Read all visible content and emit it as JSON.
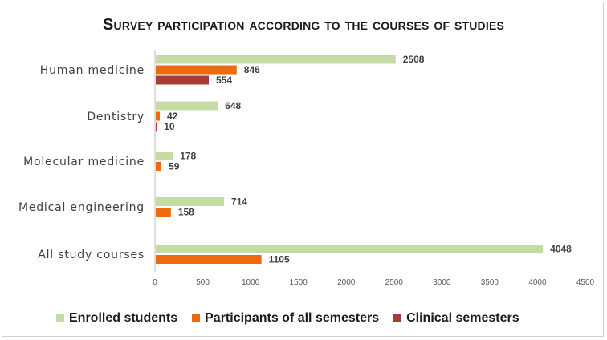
{
  "chart_data": {
    "type": "bar",
    "orientation": "horizontal",
    "title": "Survey participation according to the courses of studies",
    "categories": [
      "Human medicine",
      "Dentistry",
      "Molecular medicine",
      "Medical engineering",
      "All study courses"
    ],
    "series": [
      {
        "name": "Enrolled students",
        "color": "#c5dba4",
        "values": [
          2508,
          648,
          178,
          714,
          4048
        ]
      },
      {
        "name": "Participants of all semesters",
        "color": "#ec6a10",
        "values": [
          846,
          42,
          59,
          158,
          1105
        ]
      },
      {
        "name": "Clinical semesters",
        "color": "#a53d36",
        "values": [
          554,
          10,
          null,
          null,
          null
        ]
      }
    ],
    "xlim": [
      0,
      4500
    ],
    "xticks": [
      0,
      500,
      1000,
      1500,
      2000,
      2500,
      3000,
      3500,
      4000,
      4500
    ],
    "xlabel": "",
    "ylabel": "",
    "grid": false,
    "legend_position": "bottom"
  }
}
